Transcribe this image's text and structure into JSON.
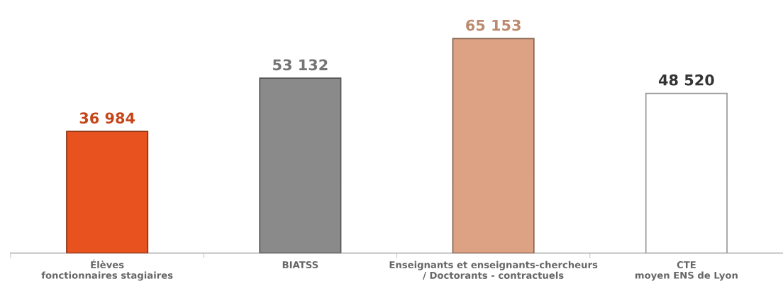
{
  "chart_data": {
    "type": "bar",
    "categories": [
      "Élèves\nfonctionnaires stagiaires",
      "BIATSS",
      "Enseignants et enseignants-chercheurs\n/ Doctorants - contractuels",
      "CTE\nmoyen ENS de Lyon"
    ],
    "values": [
      36984,
      53132,
      65153,
      48520
    ],
    "colors": [
      "#e8521e",
      "#8a8a8a",
      "#dca283",
      "#ffffff"
    ],
    "value_labels": [
      "36 984",
      "53 132",
      "65 153",
      "48 520"
    ]
  }
}
